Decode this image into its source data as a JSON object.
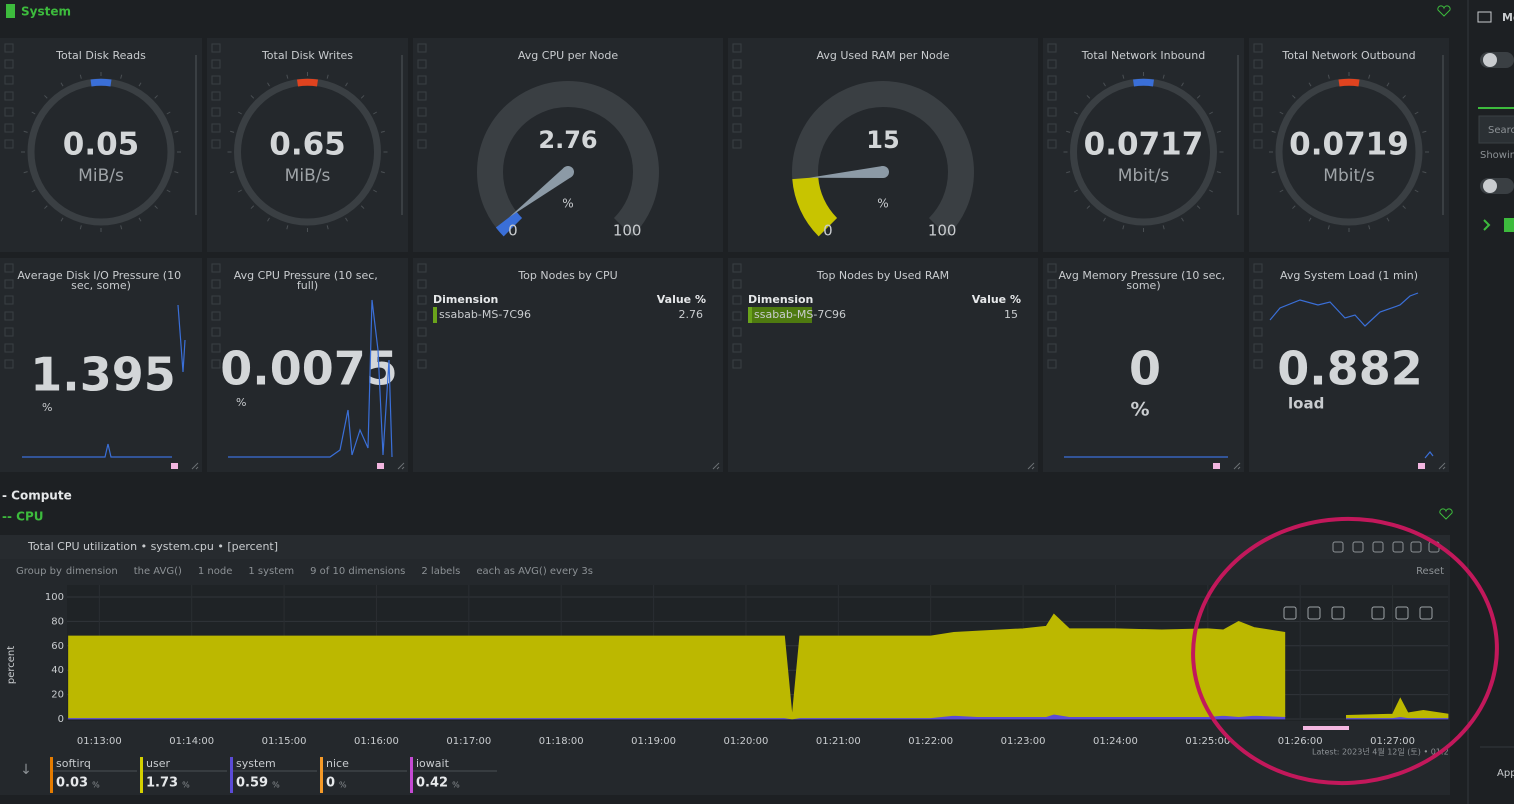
{
  "sidebar": {
    "menu": "Me",
    "search": "Searc",
    "showing": "Showin",
    "apps": "App"
  },
  "system": {
    "title": "System",
    "gauges": [
      {
        "title": "Total Disk Reads",
        "value": 0.05,
        "unit": "MiB/s"
      },
      {
        "title": "Total Disk Writes",
        "value": 0.65,
        "unit": "MiB/s"
      },
      {
        "title": "Avg CPU per Node",
        "value": 2.76,
        "unit": "%",
        "min": 0,
        "max": 100,
        "color": "#3a6fd8"
      },
      {
        "title": "Avg Used RAM per Node",
        "value": 15,
        "unit": "%",
        "min": 0,
        "max": 100,
        "color": "#c8c400"
      },
      {
        "title": "Total Network Inbound",
        "value": 0.0717,
        "unit": "Mbit/s"
      },
      {
        "title": "Total Network Outbound",
        "value": 0.0719,
        "unit": "Mbit/s"
      }
    ],
    "row2": [
      {
        "title": "Average Disk I/O Pressure (10 sec, some)",
        "value": 1.395,
        "unit": "%"
      },
      {
        "title": "Avg CPU Pressure (10 sec, full)",
        "value": 0.0075,
        "unit": "%"
      },
      {
        "title": "Top Nodes by CPU",
        "headers": [
          "Dimension",
          "Value %"
        ],
        "rows": [
          [
            "ssabab-MS-7C96",
            2.76
          ]
        ]
      },
      {
        "title": "Top Nodes by Used RAM",
        "headers": [
          "Dimension",
          "Value %"
        ],
        "rows": [
          [
            "ssabab-MS-7C96",
            15
          ]
        ]
      },
      {
        "title": "Avg Memory Pressure (10 sec, some)",
        "value": 0,
        "unit": "%"
      },
      {
        "title": "Avg System Load (1 min)",
        "value": 0.882,
        "unit": "load"
      }
    ]
  },
  "compute": {
    "title": "- Compute",
    "cpu": "-- CPU"
  },
  "chart_data": {
    "type": "area",
    "stacked": true,
    "title": "Total CPU utilization • system.cpu • [percent]",
    "controls": [
      "Group by",
      "dimension",
      "the AVG()",
      "1 node",
      "1 system",
      "9 of 10 dimensions",
      "2 labels",
      "each as AVG() every 3s"
    ],
    "reset": "Reset",
    "ylabel": "percent",
    "x": [
      "01:12:40",
      "01:13:00",
      "01:13:30",
      "01:14:00",
      "01:14:30",
      "01:15:00",
      "01:15:30",
      "01:16:00",
      "01:16:30",
      "01:17:00",
      "01:17:30",
      "01:18:00",
      "01:18:30",
      "01:19:00",
      "01:19:30",
      "01:20:00",
      "01:20:25",
      "01:20:30",
      "01:20:35",
      "01:20:45",
      "01:21:00",
      "01:21:30",
      "01:22:00",
      "01:22:15",
      "01:22:30",
      "01:23:00",
      "01:23:15",
      "01:23:20",
      "01:23:30",
      "01:24:00",
      "01:24:30",
      "01:25:00",
      "01:25:10",
      "01:25:20",
      "01:25:30",
      "01:25:50",
      "01:26:00",
      "01:26:30",
      "01:27:00",
      "01:27:05",
      "01:27:10",
      "01:27:20",
      "01:27:36"
    ],
    "xlim": [
      "01:12:39",
      "01:27:36"
    ],
    "xticks": [
      "01:13:00",
      "01:14:00",
      "01:15:00",
      "01:16:00",
      "01:17:00",
      "01:18:00",
      "01:19:00",
      "01:20:00",
      "01:21:00",
      "01:22:00",
      "01:23:00",
      "01:24:00",
      "01:25:00",
      "01:26:00",
      "01:27:00"
    ],
    "ylim": [
      0,
      100
    ],
    "yticks": [
      0,
      20,
      40,
      60,
      80,
      100
    ],
    "grid": true,
    "series": [
      {
        "name": "system",
        "color": "#5b4bd6",
        "values": [
          1,
          1,
          1,
          1,
          1,
          1,
          1,
          1,
          1,
          1,
          1,
          1,
          1,
          1,
          1,
          1,
          1,
          0,
          1,
          1,
          1,
          1,
          1,
          3,
          2,
          2,
          2,
          4,
          2,
          2,
          2,
          2,
          3,
          2,
          3,
          2,
          null,
          1,
          1,
          2,
          1,
          1,
          1
        ]
      },
      {
        "name": "user",
        "color": "#bcb800",
        "values": [
          67,
          67,
          67,
          67,
          67,
          67,
          67,
          67,
          67,
          67,
          67,
          67,
          67,
          67,
          67,
          67,
          67,
          2,
          67,
          67,
          67,
          67,
          67,
          68,
          70,
          72,
          74,
          82,
          72,
          72,
          71,
          72,
          70,
          78,
          72,
          69,
          null,
          2,
          3,
          15,
          4,
          6,
          3
        ]
      }
    ],
    "legend": [
      {
        "name": "softirq",
        "color": "#e57c00",
        "value": 0.03
      },
      {
        "name": "user",
        "color": "#d4d000",
        "value": 1.73
      },
      {
        "name": "system",
        "color": "#5b4bd6",
        "value": 0.59
      },
      {
        "name": "nice",
        "color": "#f59a28",
        "value": 0
      },
      {
        "name": "iowait",
        "color": "#c44ad3",
        "value": 0.42
      }
    ],
    "legend_unit": "%",
    "latest": "Latest: 2023년 4월 12일 (토) • 01:2"
  }
}
